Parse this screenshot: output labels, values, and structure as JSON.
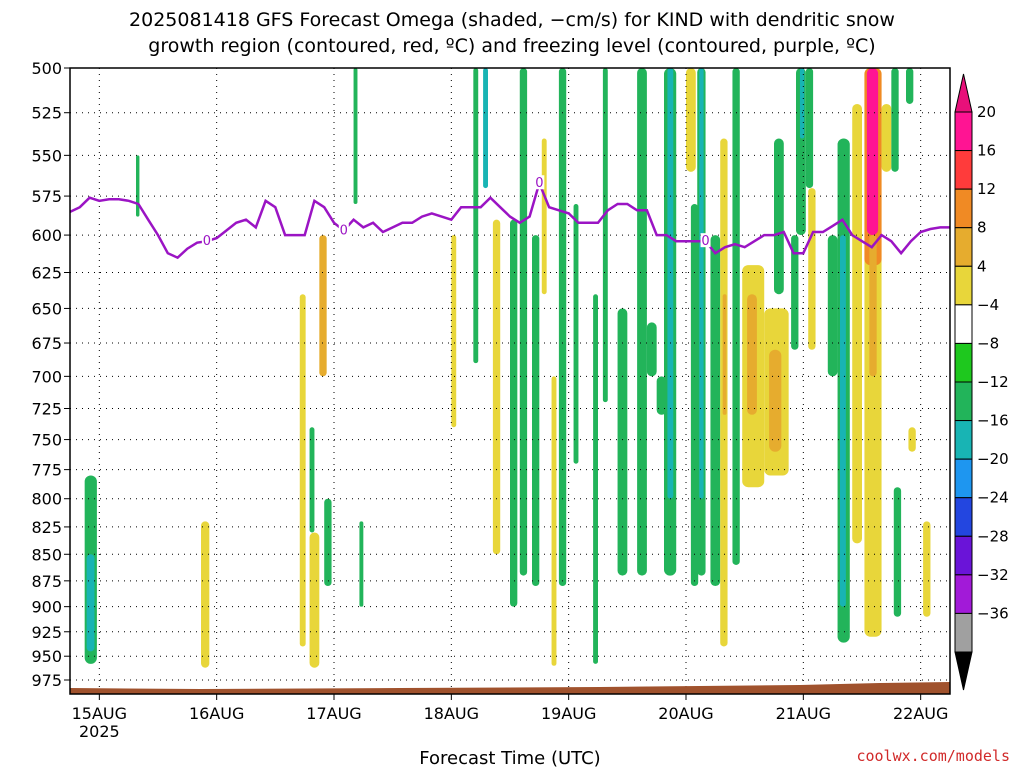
{
  "title_line1": "2025081418 GFS Forecast Omega (shaded, −cm/s) for KIND with dendritic snow",
  "title_line2": "growth region (contoured, red, ºC) and freezing level (contoured, purple, ºC)",
  "credit": "coolwx.com/models",
  "chart_data": {
    "type": "heatmap",
    "xlabel": "Forecast Time (UTC)",
    "ylabel": "",
    "x_range_hours": [
      0,
      180
    ],
    "y_range_hPa": [
      500,
      990
    ],
    "y_axis": "pressure (hPa), inverted",
    "grid": true,
    "x_ticks": [
      {
        "label": "15AUG",
        "hour": 6,
        "sub": "2025"
      },
      {
        "label": "16AUG",
        "hour": 30,
        "sub": ""
      },
      {
        "label": "17AUG",
        "hour": 54,
        "sub": ""
      },
      {
        "label": "18AUG",
        "hour": 78,
        "sub": ""
      },
      {
        "label": "19AUG",
        "hour": 102,
        "sub": ""
      },
      {
        "label": "20AUG",
        "hour": 126,
        "sub": ""
      },
      {
        "label": "21AUG",
        "hour": 150,
        "sub": ""
      },
      {
        "label": "22AUG",
        "hour": 174,
        "sub": ""
      }
    ],
    "y_ticks": [
      500,
      525,
      550,
      575,
      600,
      625,
      650,
      675,
      700,
      725,
      750,
      775,
      800,
      825,
      850,
      875,
      900,
      925,
      950,
      975
    ],
    "colorbar": {
      "labels": [
        "20",
        "16",
        "12",
        "8",
        "4",
        "−4",
        "−8",
        "−12",
        "−16",
        "−20",
        "−24",
        "−28",
        "−32",
        "−36"
      ],
      "colors": [
        "#ff1493",
        "#ff3b3b",
        "#f08a24",
        "#e6ac2e",
        "#e8d63a",
        "#ffffff",
        "#1ec81e",
        "#22b45a",
        "#18b4b4",
        "#1e96f0",
        "#2346e0",
        "#6a14d8",
        "#a21ad8",
        "#a0a0a0"
      ],
      "top_arrow_color": "#e8107a",
      "bottom_arrow_color": "#000000"
    },
    "omega_regions": [
      {
        "h0": 3.0,
        "h1": 5.5,
        "p0": 780,
        "p1": 958,
        "v": -8
      },
      {
        "h0": 3.4,
        "h1": 5.0,
        "p0": 850,
        "p1": 945,
        "v": -14
      },
      {
        "h0": 13.5,
        "h1": 14.2,
        "p0": 550,
        "p1": 588,
        "v": -8
      },
      {
        "h0": 26.8,
        "h1": 28.5,
        "p0": 820,
        "p1": 962,
        "v": 6
      },
      {
        "h0": 47.0,
        "h1": 48.2,
        "p0": 640,
        "p1": 940,
        "v": 6
      },
      {
        "h0": 49.0,
        "h1": 51.0,
        "p0": 830,
        "p1": 962,
        "v": 6
      },
      {
        "h0": 51.0,
        "h1": 52.5,
        "p0": 600,
        "p1": 700,
        "v": 8
      },
      {
        "h0": 49.0,
        "h1": 50.0,
        "p0": 740,
        "p1": 830,
        "v": -8
      },
      {
        "h0": 52.0,
        "h1": 53.5,
        "p0": 800,
        "p1": 880,
        "v": -8
      },
      {
        "h0": 58.0,
        "h1": 58.8,
        "p0": 500,
        "p1": 580,
        "v": -8
      },
      {
        "h0": 59.2,
        "h1": 60.0,
        "p0": 820,
        "p1": 900,
        "v": -8
      },
      {
        "h0": 78.0,
        "h1": 79.0,
        "p0": 600,
        "p1": 740,
        "v": 6
      },
      {
        "h0": 82.5,
        "h1": 83.5,
        "p0": 500,
        "p1": 690,
        "v": -8
      },
      {
        "h0": 84.5,
        "h1": 85.5,
        "p0": 500,
        "p1": 570,
        "v": -12
      },
      {
        "h0": 86.5,
        "h1": 88.0,
        "p0": 590,
        "p1": 850,
        "v": 6
      },
      {
        "h0": 90.0,
        "h1": 91.5,
        "p0": 590,
        "p1": 900,
        "v": -8
      },
      {
        "h0": 92.0,
        "h1": 93.5,
        "p0": 500,
        "p1": 870,
        "v": -8
      },
      {
        "h0": 94.5,
        "h1": 96.0,
        "p0": 600,
        "p1": 880,
        "v": -8
      },
      {
        "h0": 96.5,
        "h1": 97.5,
        "p0": 540,
        "p1": 640,
        "v": 6
      },
      {
        "h0": 98.5,
        "h1": 99.5,
        "p0": 700,
        "p1": 960,
        "v": 6
      },
      {
        "h0": 100.0,
        "h1": 101.5,
        "p0": 500,
        "p1": 880,
        "v": -8
      },
      {
        "h0": 103.0,
        "h1": 104.0,
        "p0": 580,
        "p1": 770,
        "v": -8
      },
      {
        "h0": 107.0,
        "h1": 108.0,
        "p0": 640,
        "p1": 958,
        "v": -8
      },
      {
        "h0": 109.0,
        "h1": 110.0,
        "p0": 500,
        "p1": 720,
        "v": -8
      },
      {
        "h0": 112.0,
        "h1": 114.0,
        "p0": 650,
        "p1": 870,
        "v": -8
      },
      {
        "h0": 116.0,
        "h1": 118.0,
        "p0": 500,
        "p1": 870,
        "v": -8
      },
      {
        "h0": 118.0,
        "h1": 120.0,
        "p0": 660,
        "p1": 700,
        "v": -8
      },
      {
        "h0": 120.0,
        "h1": 122.0,
        "p0": 700,
        "p1": 730,
        "v": -8
      },
      {
        "h0": 121.5,
        "h1": 124.0,
        "p0": 500,
        "p1": 870,
        "v": -8
      },
      {
        "h0": 122.2,
        "h1": 123.4,
        "p0": 500,
        "p1": 800,
        "v": -14
      },
      {
        "h0": 126.0,
        "h1": 128.0,
        "p0": 500,
        "p1": 560,
        "v": 6
      },
      {
        "h0": 127.0,
        "h1": 128.5,
        "p0": 580,
        "p1": 880,
        "v": -8
      },
      {
        "h0": 128.3,
        "h1": 130.0,
        "p0": 500,
        "p1": 870,
        "v": -8
      },
      {
        "h0": 128.7,
        "h1": 129.6,
        "p0": 500,
        "p1": 800,
        "v": -14
      },
      {
        "h0": 131.0,
        "h1": 133.0,
        "p0": 600,
        "p1": 880,
        "v": -8
      },
      {
        "h0": 133.0,
        "h1": 134.5,
        "p0": 540,
        "p1": 940,
        "v": 6
      },
      {
        "h0": 133.5,
        "h1": 134.3,
        "p0": 640,
        "p1": 730,
        "v": 10
      },
      {
        "h0": 135.5,
        "h1": 137.0,
        "p0": 500,
        "p1": 860,
        "v": -8
      },
      {
        "h0": 137.5,
        "h1": 142.0,
        "p0": 620,
        "p1": 790,
        "v": 6
      },
      {
        "h0": 138.5,
        "h1": 140.5,
        "p0": 640,
        "p1": 730,
        "v": 10
      },
      {
        "h0": 142.0,
        "h1": 147.0,
        "p0": 650,
        "p1": 780,
        "v": 6
      },
      {
        "h0": 143.0,
        "h1": 145.5,
        "p0": 680,
        "p1": 760,
        "v": 9
      },
      {
        "h0": 144.0,
        "h1": 146.0,
        "p0": 540,
        "p1": 640,
        "v": -8
      },
      {
        "h0": 147.5,
        "h1": 149.0,
        "p0": 600,
        "p1": 680,
        "v": -8
      },
      {
        "h0": 148.5,
        "h1": 150.5,
        "p0": 500,
        "p1": 600,
        "v": -8
      },
      {
        "h0": 149.3,
        "h1": 150.2,
        "p0": 500,
        "p1": 540,
        "v": -14
      },
      {
        "h0": 150.5,
        "h1": 152.0,
        "p0": 500,
        "p1": 570,
        "v": -8
      },
      {
        "h0": 151.0,
        "h1": 152.5,
        "p0": 570,
        "p1": 680,
        "v": 6
      },
      {
        "h0": 155.0,
        "h1": 157.0,
        "p0": 600,
        "p1": 700,
        "v": -8
      },
      {
        "h0": 157.0,
        "h1": 159.5,
        "p0": 540,
        "p1": 936,
        "v": -8
      },
      {
        "h0": 157.5,
        "h1": 158.7,
        "p0": 600,
        "p1": 900,
        "v": -14
      },
      {
        "h0": 160.0,
        "h1": 162.0,
        "p0": 520,
        "p1": 840,
        "v": 6
      },
      {
        "h0": 162.5,
        "h1": 166.0,
        "p0": 500,
        "p1": 930,
        "v": 6
      },
      {
        "h0": 162.5,
        "h1": 166.0,
        "p0": 500,
        "p1": 620,
        "v": 14
      },
      {
        "h0": 163.0,
        "h1": 165.3,
        "p0": 500,
        "p1": 600,
        "v": 22
      },
      {
        "h0": 163.5,
        "h1": 165.0,
        "p0": 600,
        "p1": 700,
        "v": 10
      },
      {
        "h0": 166.0,
        "h1": 168.0,
        "p0": 520,
        "p1": 560,
        "v": 6
      },
      {
        "h0": 168.0,
        "h1": 169.5,
        "p0": 500,
        "p1": 560,
        "v": -8
      },
      {
        "h0": 168.5,
        "h1": 170.0,
        "p0": 790,
        "p1": 910,
        "v": -8
      },
      {
        "h0": 171.0,
        "h1": 172.5,
        "p0": 500,
        "p1": 520,
        "v": -8
      },
      {
        "h0": 171.5,
        "h1": 173.0,
        "p0": 740,
        "p1": 760,
        "v": 6
      },
      {
        "h0": 174.5,
        "h1": 176.0,
        "p0": 820,
        "p1": 910,
        "v": 6
      }
    ],
    "freezing_level": {
      "hours": [
        0,
        2,
        4,
        6,
        8,
        10,
        12,
        14,
        16,
        18,
        20,
        22,
        24,
        26,
        28,
        30,
        32,
        34,
        36,
        38,
        40,
        42,
        44,
        46,
        48,
        50,
        52,
        54,
        56,
        58,
        60,
        62,
        64,
        66,
        68,
        70,
        72,
        74,
        76,
        78,
        80,
        82,
        84,
        86,
        88,
        90,
        92,
        94,
        96,
        98,
        100,
        102,
        104,
        106,
        108,
        110,
        112,
        114,
        116,
        118,
        120,
        122,
        124,
        126,
        128,
        130,
        132,
        134,
        136,
        138,
        140,
        142,
        144,
        146,
        148,
        150,
        152,
        154,
        156,
        158,
        160,
        162,
        164,
        166,
        168,
        170,
        172,
        174,
        176,
        178,
        180
      ],
      "pressure_hPa": [
        585,
        582,
        576,
        578,
        577,
        577,
        578,
        580,
        590,
        600,
        612,
        615,
        609,
        605,
        604,
        602,
        597,
        592,
        590,
        595,
        578,
        582,
        600,
        600,
        600,
        578,
        582,
        592,
        597,
        590,
        595,
        592,
        598,
        595,
        592,
        592,
        588,
        586,
        588,
        590,
        582,
        582,
        582,
        576,
        582,
        588,
        592,
        588,
        567,
        582,
        584,
        586,
        592,
        592,
        592,
        584,
        580,
        580,
        584,
        584,
        600,
        600,
        604,
        604,
        604,
        604,
        612,
        608,
        606,
        608,
        604,
        600,
        600,
        598,
        612,
        612,
        598,
        598,
        594,
        590,
        600,
        604,
        608,
        600,
        604,
        612,
        604,
        598,
        596,
        595,
        595
      ],
      "contour_label": "0",
      "label_hours": [
        28,
        56,
        96,
        130
      ]
    }
  }
}
